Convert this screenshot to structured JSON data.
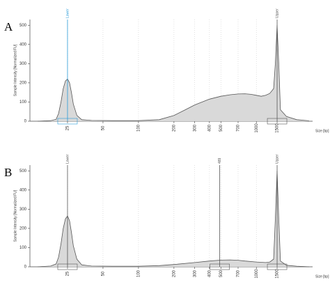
{
  "chart_data": [
    {
      "type": "line",
      "label": "A",
      "y_label": "Sample Intensity [Normalized FU]",
      "x_label": "Size [bp]",
      "xscale": "log",
      "xlim": [
        12,
        3000
      ],
      "ylim": [
        0,
        530
      ],
      "grid": true,
      "xticks": [
        25,
        50,
        100,
        200,
        300,
        400,
        500,
        700,
        1000,
        1500
      ],
      "yticks": [
        0,
        100,
        200,
        300,
        400,
        500
      ],
      "color": "#555555",
      "fill": "#d9d9d9",
      "x": [
        14,
        18,
        20,
        21,
        22,
        23,
        24,
        25,
        26,
        27,
        28,
        30,
        33,
        40,
        60,
        100,
        150,
        200,
        250,
        300,
        400,
        500,
        600,
        700,
        800,
        900,
        1000,
        1100,
        1200,
        1300,
        1400,
        1450,
        1500,
        1550,
        1600,
        1800,
        2200,
        2800
      ],
      "values": [
        0,
        3,
        10,
        40,
        100,
        170,
        210,
        220,
        200,
        150,
        90,
        30,
        8,
        4,
        3,
        3,
        8,
        30,
        60,
        85,
        115,
        130,
        138,
        142,
        143,
        140,
        135,
        130,
        135,
        145,
        170,
        300,
        500,
        300,
        60,
        25,
        8,
        2
      ],
      "annotations": [
        {
          "x": 25,
          "text": "Lower",
          "color": "#2a9bd8"
        },
        {
          "x": 1500,
          "text": "Upper",
          "color": "#555555"
        }
      ]
    },
    {
      "type": "line",
      "label": "B",
      "y_label": "Sample Intensity [Normalized FU]",
      "x_label": "Size [bp]",
      "xscale": "log",
      "xlim": [
        12,
        3000
      ],
      "ylim": [
        0,
        530
      ],
      "grid": true,
      "xticks": [
        25,
        50,
        100,
        200,
        300,
        400,
        500,
        700,
        1000,
        1500
      ],
      "yticks": [
        0,
        100,
        200,
        300,
        400,
        500
      ],
      "color": "#555555",
      "fill": "#d9d9d9",
      "x": [
        14,
        18,
        20,
        21,
        22,
        23,
        24,
        25,
        26,
        27,
        28,
        30,
        33,
        40,
        60,
        100,
        150,
        200,
        300,
        400,
        500,
        600,
        700,
        800,
        1000,
        1200,
        1300,
        1400,
        1450,
        1500,
        1550,
        1600,
        1800,
        2200,
        2800
      ],
      "values": [
        0,
        4,
        15,
        50,
        120,
        200,
        250,
        265,
        240,
        180,
        110,
        40,
        10,
        4,
        3,
        3,
        6,
        12,
        22,
        30,
        35,
        36,
        34,
        30,
        25,
        22,
        25,
        40,
        250,
        500,
        250,
        30,
        8,
        3,
        0
      ],
      "annotations": [
        {
          "x": 25,
          "text": "Lower",
          "color": "#555555"
        },
        {
          "x": 489,
          "text": "489",
          "color": "#555555"
        },
        {
          "x": 1500,
          "text": "Upper",
          "color": "#555555"
        }
      ]
    }
  ]
}
